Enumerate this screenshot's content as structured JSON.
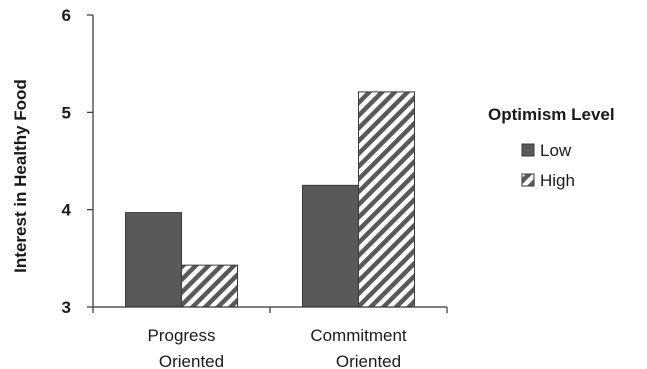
{
  "chart_data": {
    "type": "bar",
    "categories": [
      [
        "Progress",
        "Oriented"
      ],
      [
        "Commitment",
        "Oriented"
      ]
    ],
    "series": [
      {
        "name": "Low",
        "values": [
          3.97,
          4.25
        ],
        "color": "#595959",
        "pattern": "solid"
      },
      {
        "name": "High",
        "values": [
          3.43,
          5.21
        ],
        "color": "#595959",
        "pattern": "diagonal-hatch"
      }
    ],
    "ylabel": "Interest in Healthy Food",
    "xlabel": "",
    "ylim": [
      3,
      6
    ],
    "yticks": [
      "3",
      "4",
      "5",
      "6"
    ],
    "grid": false,
    "legend": {
      "title": "Optimism Level",
      "placement": "right"
    }
  }
}
